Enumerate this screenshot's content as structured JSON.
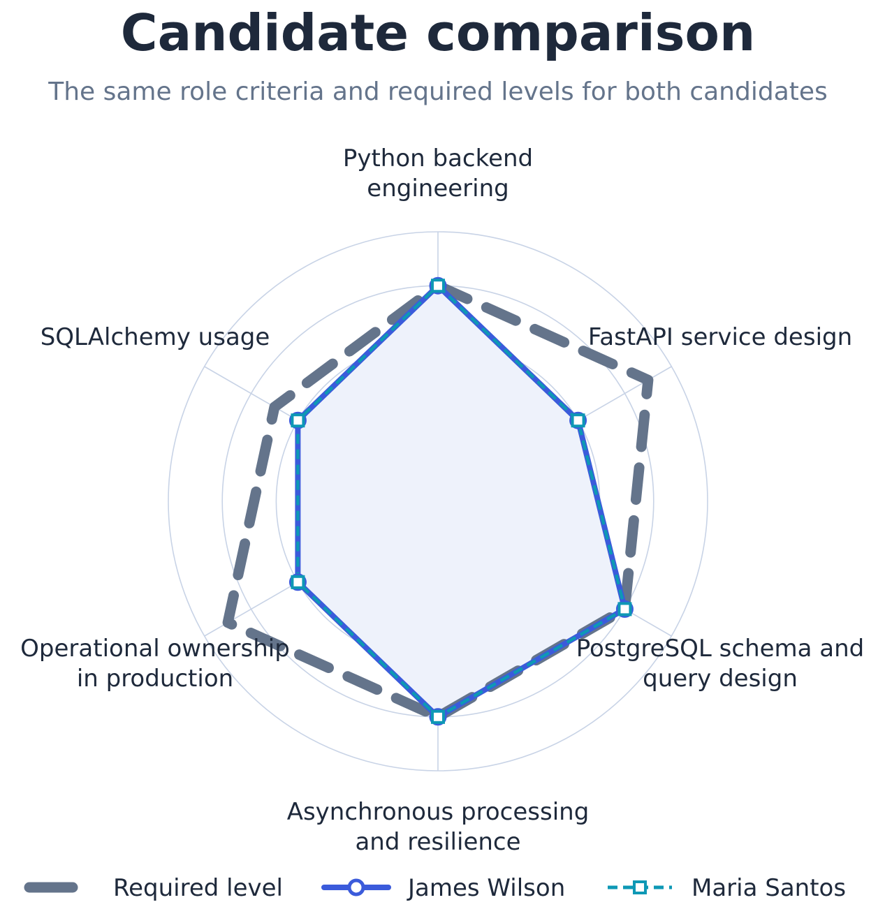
{
  "chart_data": {
    "type": "radar",
    "title": "Candidate comparison",
    "subtitle": "The same role criteria and required levels for both candidates",
    "categories": [
      [
        "Python backend",
        "engineering"
      ],
      [
        "FastAPI service design"
      ],
      [
        "PostgreSQL schema and",
        "query design"
      ],
      [
        "Asynchronous processing",
        "and resilience"
      ],
      [
        "Operational ownership",
        "in production"
      ],
      [
        "SQLAlchemy usage"
      ]
    ],
    "rlim": [
      0,
      5
    ],
    "rings": [
      1,
      2,
      3,
      4,
      5
    ],
    "grid": true,
    "series": [
      {
        "name": "Required level",
        "values": [
          4,
          4.5,
          4,
          4,
          4.5,
          3.5
        ],
        "color": "#64748b",
        "style": "dashed-thick"
      },
      {
        "name": "James Wilson",
        "values": [
          4,
          3,
          4,
          4,
          3,
          3
        ],
        "color": "#3b5bdb",
        "style": "solid",
        "marker": "circle",
        "fill": "#eef2fb"
      },
      {
        "name": "Maria Santos",
        "values": [
          4,
          3,
          4,
          4,
          3,
          3
        ],
        "color": "#0e98b5",
        "style": "dashed",
        "marker": "square"
      }
    ],
    "legend": "bottom"
  }
}
